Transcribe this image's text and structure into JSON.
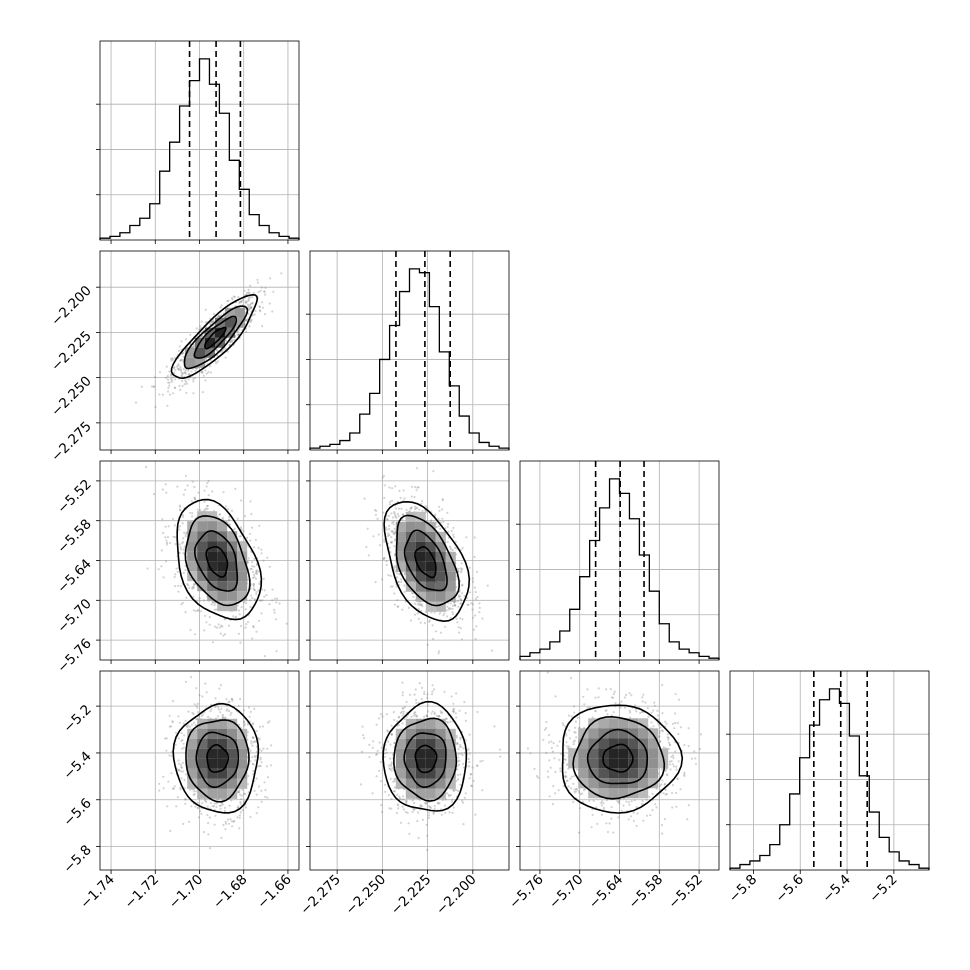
{
  "chart_data": {
    "type": "corner",
    "dimensions": [
      {
        "range": [
          -1.745,
          -1.655
        ],
        "ticks": [
          -1.74,
          -1.72,
          -1.7,
          -1.68,
          -1.66
        ],
        "tick_labels": [
          "−1.74",
          "−1.72",
          "−1.70",
          "−1.68",
          "−1.66"
        ],
        "quantiles": [
          -1.7045,
          -1.6925,
          -1.6815
        ]
      },
      {
        "range": [
          -2.29,
          -2.18
        ],
        "ticks": [
          -2.275,
          -2.25,
          -2.225,
          -2.2
        ],
        "tick_labels": [
          "−2.275",
          "−2.250",
          "−2.225",
          "−2.200"
        ],
        "quantiles": [
          -2.2425,
          -2.2265,
          -2.2125
        ]
      },
      {
        "range": [
          -5.79,
          -5.49
        ],
        "ticks": [
          -5.76,
          -5.7,
          -5.64,
          -5.58,
          -5.52
        ],
        "tick_labels": [
          "−5.76",
          "−5.70",
          "−5.64",
          "−5.58",
          "−5.52"
        ],
        "quantiles": [
          -5.676,
          -5.639,
          -5.603
        ]
      },
      {
        "range": [
          -5.9,
          -5.05
        ],
        "ticks": [
          -5.8,
          -5.6,
          -5.4,
          -5.2
        ],
        "tick_labels": [
          "−5.8",
          "−5.6",
          "−5.4",
          "−5.2"
        ],
        "quantiles": [
          -5.542,
          -5.427,
          -5.314
        ]
      }
    ],
    "histograms": [
      {
        "dim": 0,
        "bins": 20,
        "values": [
          0.01,
          0.02,
          0.04,
          0.08,
          0.12,
          0.2,
          0.38,
          0.54,
          0.74,
          0.88,
          1.0,
          0.86,
          0.7,
          0.44,
          0.28,
          0.14,
          0.08,
          0.04,
          0.02,
          0.01
        ]
      },
      {
        "dim": 1,
        "bins": 20,
        "values": [
          0.01,
          0.02,
          0.03,
          0.05,
          0.09,
          0.19,
          0.3,
          0.48,
          0.66,
          0.84,
          0.96,
          0.94,
          0.76,
          0.52,
          0.34,
          0.18,
          0.09,
          0.04,
          0.02,
          0.01
        ]
      },
      {
        "dim": 2,
        "bins": 20,
        "values": [
          0.02,
          0.04,
          0.06,
          0.1,
          0.16,
          0.28,
          0.46,
          0.66,
          0.84,
          1.0,
          0.92,
          0.78,
          0.58,
          0.38,
          0.2,
          0.1,
          0.06,
          0.04,
          0.02,
          0.01
        ]
      },
      {
        "dim": 3,
        "bins": 20,
        "values": [
          0.01,
          0.03,
          0.05,
          0.08,
          0.14,
          0.25,
          0.42,
          0.62,
          0.8,
          0.94,
          1.0,
          0.92,
          0.74,
          0.52,
          0.32,
          0.18,
          0.1,
          0.05,
          0.03,
          0.01
        ]
      }
    ],
    "pairs": [
      {
        "x_dim": 0,
        "y_dim": 1,
        "mean": [
          -1.693,
          -2.228
        ],
        "sd": [
          0.0095,
          0.0115
        ],
        "corr": 0.85
      },
      {
        "x_dim": 0,
        "y_dim": 2,
        "mean": [
          -1.692,
          -5.641
        ],
        "sd": [
          0.0095,
          0.045
        ],
        "corr": -0.35
      },
      {
        "x_dim": 1,
        "y_dim": 2,
        "mean": [
          -2.226,
          -5.642
        ],
        "sd": [
          0.0115,
          0.045
        ],
        "corr": -0.45
      },
      {
        "x_dim": 0,
        "y_dim": 3,
        "mean": [
          -1.692,
          -5.425
        ],
        "sd": [
          0.0095,
          0.115
        ],
        "corr": 0.0
      },
      {
        "x_dim": 1,
        "y_dim": 3,
        "mean": [
          -2.226,
          -5.425
        ],
        "sd": [
          0.0115,
          0.115
        ],
        "corr": 0.0
      },
      {
        "x_dim": 2,
        "y_dim": 3,
        "mean": [
          -5.642,
          -5.423
        ],
        "sd": [
          0.045,
          0.115
        ],
        "corr": 0.0
      }
    ],
    "contour_levels_sigma": [
      0.5,
      1.0,
      1.5,
      2.0
    ],
    "grid": true,
    "quantile_line_style": "dashed",
    "scatter_color": "#808080",
    "line_color": "#000000"
  }
}
